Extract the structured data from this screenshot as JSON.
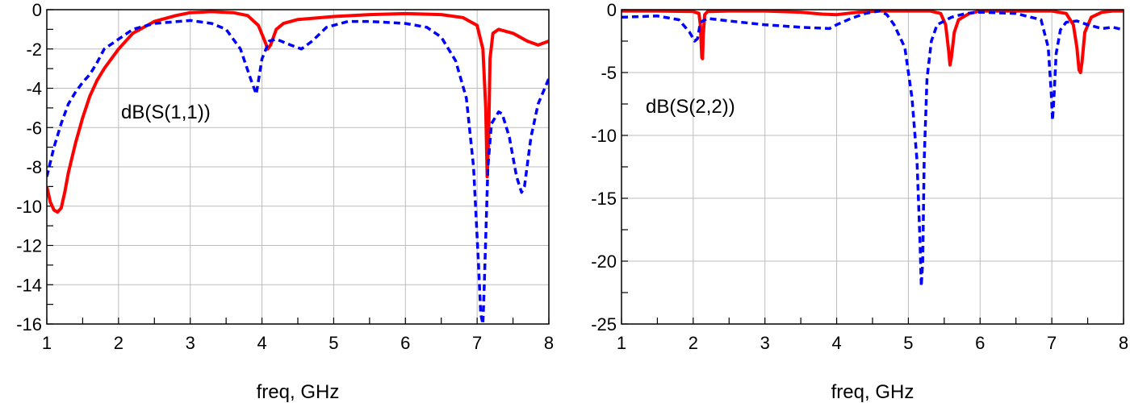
{
  "chart_data": [
    {
      "type": "line",
      "title": "",
      "xlabel": "freq, GHz",
      "ylabel": "",
      "annotation": "dB(S(1,1))",
      "xlim": [
        1,
        8
      ],
      "ylim": [
        -16,
        0
      ],
      "xticks": [
        1,
        2,
        3,
        4,
        5,
        6,
        7,
        8
      ],
      "yticks": [
        0,
        -2,
        -4,
        -6,
        -8,
        -10,
        -12,
        -14,
        -16
      ],
      "grid": true,
      "series": [
        {
          "color": "#ff0000",
          "style": "solid",
          "x": [
            1.0,
            1.05,
            1.1,
            1.15,
            1.2,
            1.25,
            1.3,
            1.4,
            1.5,
            1.6,
            1.7,
            1.8,
            2.0,
            2.2,
            2.5,
            2.8,
            3.0,
            3.3,
            3.6,
            3.8,
            3.95,
            4.05,
            4.08,
            4.12,
            4.2,
            4.3,
            4.5,
            5.0,
            5.5,
            6.0,
            6.5,
            6.8,
            7.0,
            7.08,
            7.12,
            7.14,
            7.16,
            7.18,
            7.22,
            7.3,
            7.5,
            7.7,
            7.85,
            8.0
          ],
          "y": [
            -9.0,
            -9.8,
            -10.2,
            -10.3,
            -10.1,
            -9.3,
            -8.3,
            -6.8,
            -5.5,
            -4.4,
            -3.6,
            -3.0,
            -2.0,
            -1.2,
            -0.6,
            -0.3,
            -0.15,
            -0.1,
            -0.15,
            -0.3,
            -0.8,
            -1.7,
            -2.0,
            -1.8,
            -1.0,
            -0.7,
            -0.5,
            -0.35,
            -0.25,
            -0.2,
            -0.25,
            -0.4,
            -0.8,
            -2.0,
            -5.0,
            -8.5,
            -6.5,
            -2.5,
            -1.2,
            -1.0,
            -1.2,
            -1.6,
            -1.8,
            -1.6
          ]
        },
        {
          "color": "#0000ff",
          "style": "dashed",
          "x": [
            1.0,
            1.1,
            1.2,
            1.3,
            1.4,
            1.5,
            1.6,
            1.7,
            1.8,
            2.0,
            2.2,
            2.5,
            3.0,
            3.3,
            3.5,
            3.7,
            3.85,
            3.92,
            4.0,
            4.1,
            4.2,
            4.4,
            4.55,
            4.7,
            4.9,
            5.2,
            5.5,
            6.0,
            6.3,
            6.5,
            6.7,
            6.85,
            6.95,
            7.02,
            7.05,
            7.08,
            7.1,
            7.15,
            7.2,
            7.3,
            7.35,
            7.45,
            7.55,
            7.62,
            7.66,
            7.75,
            7.85,
            8.0
          ],
          "y": [
            -8.5,
            -7.0,
            -5.8,
            -4.8,
            -4.2,
            -3.7,
            -3.3,
            -2.7,
            -2.0,
            -1.5,
            -1.0,
            -0.7,
            -0.55,
            -0.7,
            -1.0,
            -2.0,
            -3.6,
            -4.3,
            -2.5,
            -1.6,
            -1.5,
            -1.8,
            -2.0,
            -1.6,
            -0.9,
            -0.6,
            -0.6,
            -0.7,
            -0.9,
            -1.4,
            -2.6,
            -4.5,
            -8.0,
            -13.0,
            -15.5,
            -16.0,
            -14.0,
            -8.0,
            -5.8,
            -5.2,
            -5.3,
            -6.5,
            -8.5,
            -9.3,
            -9.0,
            -6.5,
            -4.8,
            -3.5
          ]
        }
      ]
    },
    {
      "type": "line",
      "title": "",
      "xlabel": "freq, GHz",
      "ylabel": "",
      "annotation": "dB(S(2,2))",
      "xlim": [
        1,
        8
      ],
      "ylim": [
        -25,
        0
      ],
      "xticks": [
        1,
        2,
        3,
        4,
        5,
        6,
        7,
        8
      ],
      "yticks": [
        0,
        -5,
        -10,
        -15,
        -20,
        -25
      ],
      "grid": true,
      "series": [
        {
          "color": "#ff0000",
          "style": "solid",
          "x": [
            1.0,
            1.5,
            2.0,
            2.08,
            2.1,
            2.12,
            2.13,
            2.14,
            2.16,
            2.2,
            2.5,
            3.0,
            3.5,
            3.8,
            4.0,
            4.3,
            4.6,
            5.0,
            5.3,
            5.45,
            5.52,
            5.56,
            5.58,
            5.6,
            5.64,
            5.7,
            5.85,
            6.0,
            6.5,
            7.0,
            7.2,
            7.3,
            7.35,
            7.38,
            7.4,
            7.42,
            7.46,
            7.55,
            7.7,
            7.85,
            8.0
          ],
          "y": [
            -0.1,
            -0.1,
            -0.15,
            -0.3,
            -1.2,
            -3.8,
            -3.9,
            -2.0,
            -0.4,
            -0.15,
            -0.1,
            -0.1,
            -0.2,
            -0.35,
            -0.4,
            -0.2,
            -0.1,
            -0.1,
            -0.1,
            -0.3,
            -1.2,
            -3.2,
            -4.4,
            -3.8,
            -1.8,
            -0.8,
            -0.3,
            -0.1,
            -0.1,
            -0.1,
            -0.3,
            -1.2,
            -3.0,
            -4.8,
            -5.0,
            -4.2,
            -1.8,
            -0.6,
            -0.2,
            -0.1,
            -0.1
          ]
        },
        {
          "color": "#0000ff",
          "style": "dashed",
          "x": [
            1.0,
            1.5,
            1.8,
            1.95,
            2.02,
            2.06,
            2.1,
            2.2,
            2.5,
            3.0,
            3.5,
            3.9,
            4.0,
            4.2,
            4.4,
            4.6,
            4.7,
            4.8,
            4.95,
            5.05,
            5.12,
            5.16,
            5.18,
            5.2,
            5.22,
            5.26,
            5.32,
            5.4,
            5.6,
            5.8,
            6.0,
            6.5,
            6.85,
            6.95,
            6.99,
            7.01,
            7.03,
            7.06,
            7.12,
            7.2,
            7.35,
            7.5,
            7.7,
            7.85,
            8.0
          ],
          "y": [
            -0.6,
            -0.5,
            -0.8,
            -1.8,
            -2.5,
            -2.3,
            -1.0,
            -0.7,
            -0.9,
            -1.2,
            -1.4,
            -1.5,
            -1.2,
            -0.7,
            -0.3,
            -0.1,
            -0.4,
            -1.2,
            -3.0,
            -7.0,
            -12.0,
            -18.0,
            -22.0,
            -20.0,
            -12.0,
            -5.5,
            -2.5,
            -1.2,
            -0.6,
            -0.3,
            -0.2,
            -0.3,
            -0.8,
            -3.0,
            -6.5,
            -8.8,
            -7.0,
            -3.5,
            -1.6,
            -1.0,
            -0.9,
            -1.2,
            -1.5,
            -1.4,
            -1.6
          ]
        }
      ]
    }
  ]
}
